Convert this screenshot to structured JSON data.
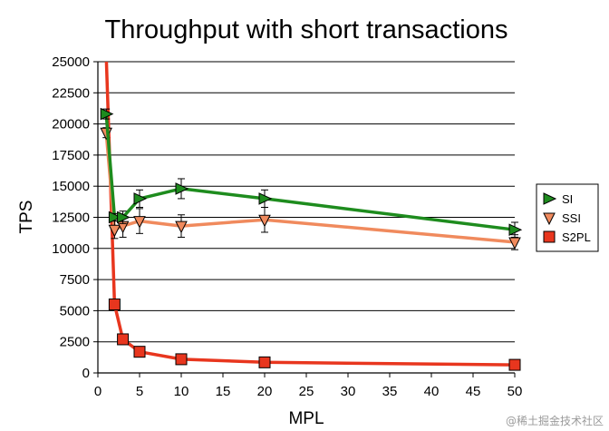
{
  "chart_data": {
    "type": "line",
    "title": "Throughput with short transactions",
    "xlabel": "MPL",
    "ylabel": "TPS",
    "xlim": [
      0,
      50
    ],
    "ylim": [
      0,
      25000
    ],
    "x_ticks": [
      0,
      5,
      10,
      15,
      20,
      25,
      30,
      35,
      40,
      45,
      50
    ],
    "y_ticks": [
      0,
      2500,
      5000,
      7500,
      10000,
      12500,
      15000,
      17500,
      20000,
      22500,
      25000
    ],
    "grid": "horizontal",
    "legend_position": "right",
    "series": [
      {
        "name": "SI",
        "color": "#1e8c1e",
        "marker": "triangle-right",
        "points": [
          {
            "x": 1,
            "y": 20800,
            "err": 400
          },
          {
            "x": 2,
            "y": 12500,
            "err": 300
          },
          {
            "x": 3,
            "y": 12500,
            "err": 500
          },
          {
            "x": 5,
            "y": 14000,
            "err": 700
          },
          {
            "x": 10,
            "y": 14800,
            "err": 800
          },
          {
            "x": 20,
            "y": 14000,
            "err": 700
          },
          {
            "x": 50,
            "y": 11500,
            "err": 600
          }
        ]
      },
      {
        "name": "SSI",
        "color": "#f08a5d",
        "marker": "triangle-down",
        "points": [
          {
            "x": 1,
            "y": 19300,
            "err": 400
          },
          {
            "x": 2,
            "y": 11500,
            "err": 700
          },
          {
            "x": 3,
            "y": 11800,
            "err": 900
          },
          {
            "x": 5,
            "y": 12200,
            "err": 1000
          },
          {
            "x": 10,
            "y": 11800,
            "err": 900
          },
          {
            "x": 20,
            "y": 12300,
            "err": 1000
          },
          {
            "x": 50,
            "y": 10500,
            "err": 600
          }
        ]
      },
      {
        "name": "S2PL",
        "color": "#e8361e",
        "marker": "square",
        "points": [
          {
            "x": 1,
            "y": 25500,
            "err": 0
          },
          {
            "x": 2,
            "y": 5500,
            "err": 300
          },
          {
            "x": 3,
            "y": 2700,
            "err": 300
          },
          {
            "x": 5,
            "y": 1700,
            "err": 200
          },
          {
            "x": 10,
            "y": 1100,
            "err": 200
          },
          {
            "x": 20,
            "y": 850,
            "err": 150
          },
          {
            "x": 50,
            "y": 650,
            "err": 100
          }
        ]
      }
    ]
  },
  "watermark": "@稀土掘金技术社区"
}
